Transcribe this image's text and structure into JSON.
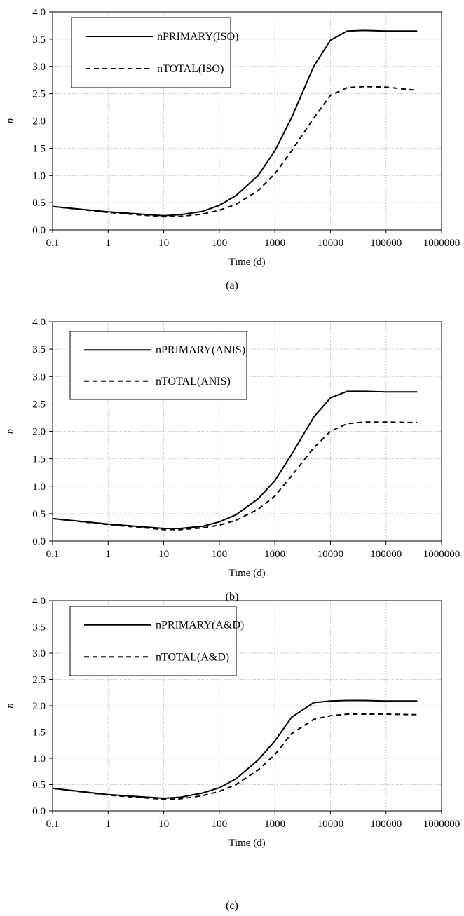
{
  "chart_data": [
    {
      "type": "line",
      "panel": "(a)",
      "xlabel": "Time (d)",
      "ylabel": "n",
      "xscale": "log",
      "xlim": [
        0.1,
        1000000
      ],
      "ylim": [
        0,
        4
      ],
      "x_ticks": [
        "0.1",
        "1",
        "10",
        "100",
        "1000",
        "10000",
        "100000",
        "1000000"
      ],
      "y_ticks": [
        "0.0",
        "0.5",
        "1.0",
        "1.5",
        "2.0",
        "2.5",
        "3.0",
        "3.5",
        "4.0"
      ],
      "grid": "dotted",
      "legend": "top-left",
      "x": [
        0.1,
        1,
        10,
        20,
        50,
        100,
        200,
        500,
        1000,
        2000,
        5000,
        10000,
        20000,
        40000,
        100000,
        365000
      ],
      "series": [
        {
          "name": "nPRIMARY(ISO)",
          "line_style": "solid",
          "values": [
            0.43,
            0.33,
            0.26,
            0.28,
            0.34,
            0.45,
            0.63,
            1.0,
            1.45,
            2.06,
            3.0,
            3.48,
            3.65,
            3.66,
            3.65,
            3.65
          ]
        },
        {
          "name": "nTOTAL(ISO)",
          "line_style": "dashed",
          "values": [
            0.43,
            0.32,
            0.24,
            0.25,
            0.29,
            0.36,
            0.47,
            0.72,
            1.03,
            1.45,
            2.05,
            2.47,
            2.61,
            2.63,
            2.62,
            2.56
          ]
        }
      ]
    },
    {
      "type": "line",
      "panel": "(b)",
      "xlabel": "Time (d)",
      "ylabel": "n",
      "xscale": "log",
      "xlim": [
        0.1,
        1000000
      ],
      "ylim": [
        0,
        4
      ],
      "x_ticks": [
        "0.1",
        "1",
        "10",
        "100",
        "1000",
        "10000",
        "100000",
        "1000000"
      ],
      "y_ticks": [
        "0.0",
        "0.5",
        "1.0",
        "1.5",
        "2.0",
        "2.5",
        "3.0",
        "3.5",
        "4.0"
      ],
      "grid": "dotted",
      "legend": "top-left",
      "x": [
        0.1,
        1,
        10,
        20,
        50,
        100,
        200,
        500,
        1000,
        2000,
        5000,
        10000,
        20000,
        40000,
        100000,
        365000
      ],
      "series": [
        {
          "name": "nPRIMARY(ANIS)",
          "line_style": "solid",
          "values": [
            0.41,
            0.31,
            0.23,
            0.23,
            0.27,
            0.35,
            0.48,
            0.77,
            1.1,
            1.58,
            2.26,
            2.61,
            2.73,
            2.73,
            2.72,
            2.72
          ]
        },
        {
          "name": "nTOTAL(ANIS)",
          "line_style": "dashed",
          "values": [
            0.41,
            0.3,
            0.21,
            0.21,
            0.24,
            0.29,
            0.38,
            0.58,
            0.82,
            1.19,
            1.7,
            2.0,
            2.14,
            2.17,
            2.17,
            2.16
          ]
        }
      ]
    },
    {
      "type": "line",
      "panel": "(c)",
      "xlabel": "Time (d)",
      "ylabel": "n",
      "xscale": "log",
      "xlim": [
        0.1,
        1000000
      ],
      "ylim": [
        0,
        4
      ],
      "x_ticks": [
        "0.1",
        "1",
        "10",
        "100",
        "1000",
        "10000",
        "100000",
        "1000000"
      ],
      "y_ticks": [
        "0.0",
        "0.5",
        "1.0",
        "1.5",
        "2.0",
        "2.5",
        "3.0",
        "3.5",
        "4.0"
      ],
      "grid": "dotted",
      "legend": "top-left",
      "x": [
        0.1,
        1,
        10,
        20,
        50,
        100,
        200,
        500,
        1000,
        2000,
        5000,
        10000,
        20000,
        40000,
        100000,
        365000
      ],
      "series": [
        {
          "name": "nPRIMARY(A&D)",
          "line_style": "solid",
          "values": [
            0.43,
            0.31,
            0.24,
            0.26,
            0.34,
            0.44,
            0.61,
            0.97,
            1.33,
            1.78,
            2.06,
            2.09,
            2.1,
            2.1,
            2.09,
            2.09
          ]
        },
        {
          "name": "nTOTAL(A&D)",
          "line_style": "dashed",
          "values": [
            0.43,
            0.3,
            0.22,
            0.23,
            0.29,
            0.37,
            0.5,
            0.78,
            1.07,
            1.47,
            1.74,
            1.81,
            1.84,
            1.84,
            1.84,
            1.83
          ]
        }
      ]
    }
  ],
  "captions": [
    "(a)",
    "(b)",
    "(c)"
  ]
}
